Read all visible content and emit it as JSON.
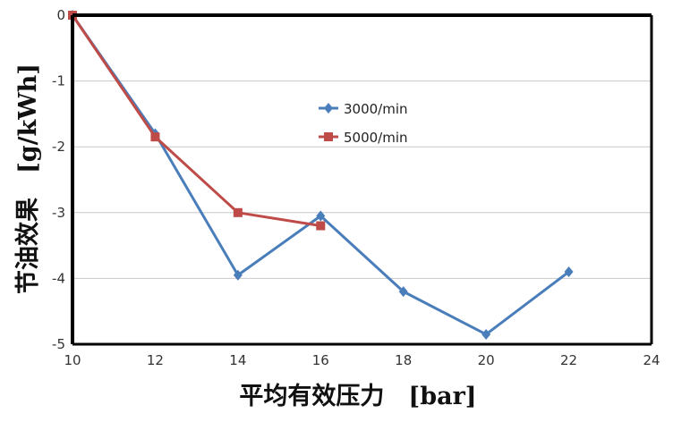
{
  "chart_data": {
    "type": "line",
    "title": "",
    "xlabel": "平均有效压力　[bar]",
    "ylabel": "节油效果　[g/kWh]",
    "xlim": [
      10,
      24
    ],
    "ylim": [
      -5,
      0
    ],
    "xticks": [
      "10",
      "12",
      "14",
      "16",
      "18",
      "20",
      "22",
      "24"
    ],
    "yticks": [
      "0",
      "-1",
      "-2",
      "-3",
      "-4",
      "-5"
    ],
    "grid": "horizontal",
    "legend_position": "center",
    "series": [
      {
        "name": "3000/min",
        "color": "#4A7EBB",
        "marker": "diamond",
        "x": [
          10,
          12,
          14,
          16,
          18,
          20,
          22
        ],
        "y": [
          0,
          -1.8,
          -3.95,
          -3.05,
          -4.2,
          -4.85,
          -3.9
        ]
      },
      {
        "name": "5000/min",
        "color": "#BE4B48",
        "marker": "square",
        "x": [
          10,
          12,
          14,
          16
        ],
        "y": [
          0,
          -1.85,
          -3.0,
          -3.2
        ]
      }
    ]
  }
}
